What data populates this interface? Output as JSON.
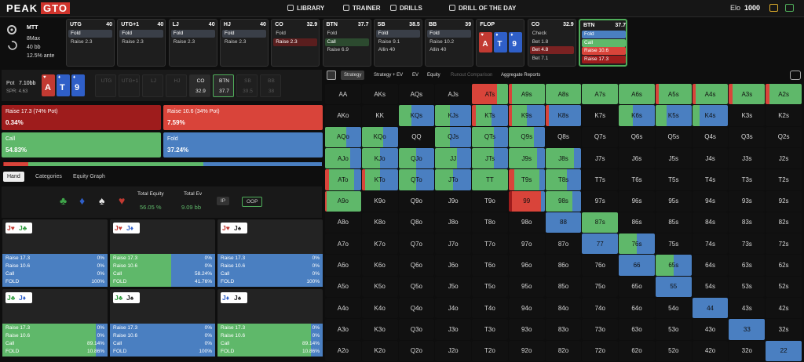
{
  "header": {
    "logo": [
      "PEAK",
      "GTO"
    ],
    "nav": [
      "LIBRARY",
      "TRAINER",
      "DRILLS",
      "DRILL OF THE DAY"
    ],
    "elo_label": "Elo",
    "elo": 1000
  },
  "game": {
    "format": "MTT",
    "table": "8Max",
    "stack": "40 bb",
    "ante": "12.5% ante"
  },
  "action_history": [
    {
      "position": "UTG",
      "stack": 40,
      "actions": [
        {
          "text": "Fold",
          "color": "#3a3f48"
        },
        {
          "text": "Raise 2.3"
        }
      ]
    },
    {
      "position": "UTG+1",
      "stack": 40,
      "actions": [
        {
          "text": "Fold",
          "color": "#3a3f48"
        },
        {
          "text": "Raise 2.3"
        }
      ]
    },
    {
      "position": "LJ",
      "stack": 40,
      "actions": [
        {
          "text": "Fold",
          "color": "#3a3f48"
        },
        {
          "text": "Raise 2.3"
        }
      ]
    },
    {
      "position": "HJ",
      "stack": 40,
      "actions": [
        {
          "text": "Fold",
          "color": "#3a3f48"
        },
        {
          "text": "Raise 2.3"
        }
      ]
    },
    {
      "position": "CO",
      "stack": 32.9,
      "actions": [
        {
          "text": "Fold"
        },
        {
          "text": "Raise 2.3",
          "color": "#5a1e1e"
        }
      ]
    },
    {
      "position": "BTN",
      "stack": 37.7,
      "actions": [
        {
          "text": "Fold"
        },
        {
          "text": "Call",
          "color": "#2c4a2f"
        },
        {
          "text": "Raise 6.9"
        }
      ]
    },
    {
      "position": "SB",
      "stack": 38.5,
      "actions": [
        {
          "text": "Fold",
          "color": "#3a3f48"
        },
        {
          "text": "Raise 9.1"
        },
        {
          "text": "Allin 40"
        }
      ]
    },
    {
      "position": "BB",
      "stack": 39,
      "actions": [
        {
          "text": "Fold",
          "color": "#3a3f48"
        },
        {
          "text": "Raise 10.2"
        },
        {
          "text": "Allin 40"
        }
      ]
    },
    {
      "position": "FLOP",
      "cards": [
        {
          "rank": "A",
          "suit": "♥",
          "color": "#c23a32"
        },
        {
          "rank": "T",
          "suit": "♦",
          "color": "#2f5fc8"
        },
        {
          "rank": "9",
          "suit": "♦",
          "color": "#2f5fc8"
        }
      ]
    },
    {
      "position": "CO",
      "stack": 32.9,
      "actions": [
        {
          "text": "Check"
        },
        {
          "text": "Bet 1.8"
        },
        {
          "text": "Bet 4.8",
          "color": "#7a2222"
        },
        {
          "text": "Bet 7.1"
        }
      ]
    },
    {
      "position": "BTN",
      "stack": 37.7,
      "current": true,
      "actions": [
        {
          "text": "Fold",
          "color": "#4a7fc1"
        },
        {
          "text": "Call",
          "color": "#5fb86a"
        },
        {
          "text": "Raise 10.6",
          "color": "#d9443a"
        },
        {
          "text": "Raise 17.3",
          "color": "#9e1c1c"
        }
      ]
    }
  ],
  "pot": {
    "label": "Pot",
    "value": "7.10bb",
    "spr": "SPR: 4.63",
    "board": [
      {
        "rank": "A",
        "suit": "♥",
        "color": "#c23a32"
      },
      {
        "rank": "T",
        "suit": "♦",
        "color": "#2f5fc8"
      },
      {
        "rank": "9",
        "suit": "♦",
        "color": "#2f5fc8"
      }
    ],
    "seats": [
      {
        "position": "UTG"
      },
      {
        "position": "UTG+1"
      },
      {
        "position": "LJ"
      },
      {
        "position": "HJ"
      },
      {
        "position": "CO",
        "stack": 32.9,
        "active": true
      },
      {
        "position": "BTN",
        "stack": 37.7,
        "active": true,
        "current": true
      },
      {
        "position": "SB",
        "stack": 39.5
      },
      {
        "position": "BB",
        "stack": 38
      }
    ]
  },
  "actions": [
    {
      "name": "Raise 17.3 (74% Pot)",
      "frequency": 0.34,
      "frequency_label": "0.34%",
      "color": "#9e1c1c"
    },
    {
      "name": "Raise 10.6 (34% Pot)",
      "frequency": 7.59,
      "frequency_label": "7.59%",
      "color": "#d9443a"
    },
    {
      "name": "Call",
      "frequency": 54.83,
      "frequency_label": "54.83%",
      "color": "#5fb86a"
    },
    {
      "name": "Fold",
      "frequency": 37.24,
      "frequency_label": "37.24%",
      "color": "#4a7fc1"
    }
  ],
  "tabs": [
    "Hand",
    "Categories",
    "Equity Graph"
  ],
  "equity": {
    "suit_filters": [
      {
        "text": "♣",
        "color": "#3fa64a"
      },
      {
        "text": "♦",
        "color": "#2f5fc8"
      },
      {
        "text": "♠",
        "color": "#e8e8e8"
      },
      {
        "text": "♥",
        "color": "#c23a32"
      }
    ],
    "total_equity_label": "Total Equity",
    "total_equity": "56.05 %",
    "total_ev_label": "Total Ev",
    "total_ev": "9.09 bb",
    "ip": "IP",
    "oop": "OOP"
  },
  "hands": [
    {
      "cards": [
        {
          "text": "J♥",
          "color": "#c23a32"
        },
        {
          "text": "J♣",
          "color": "#2e9a3c"
        }
      ],
      "rows": [
        {
          "action": "Raise 17.3",
          "value": 0,
          "label": "0%"
        },
        {
          "action": "Raise 10.6",
          "value": 0,
          "label": "0%"
        },
        {
          "action": "Call",
          "value": 0,
          "label": "0%"
        },
        {
          "action": "FOLD",
          "value": 100,
          "label": "100%"
        }
      ]
    },
    {
      "cards": [
        {
          "text": "J♥",
          "color": "#c23a32"
        },
        {
          "text": "J♦",
          "color": "#2f5fc8"
        }
      ],
      "rows": [
        {
          "action": "Raise 17.3",
          "value": 0,
          "label": "0%"
        },
        {
          "action": "Raise 10.6",
          "value": 0,
          "label": "0%"
        },
        {
          "action": "Call",
          "value": 58.24,
          "label": "58.24%"
        },
        {
          "action": "FOLD",
          "value": 41.76,
          "label": "41.76%"
        }
      ]
    },
    {
      "cards": [
        {
          "text": "J♥",
          "color": "#c23a32"
        },
        {
          "text": "J♠",
          "color": "#222"
        }
      ],
      "rows": [
        {
          "action": "Raise 17.3",
          "value": 0,
          "label": "0%"
        },
        {
          "action": "Raise 10.6",
          "value": 0,
          "label": "0%"
        },
        {
          "action": "Call",
          "value": 0,
          "label": "0%"
        },
        {
          "action": "FOLD",
          "value": 100,
          "label": "100%"
        }
      ]
    },
    {
      "cards": [
        {
          "text": "J♣",
          "color": "#2e9a3c"
        },
        {
          "text": "J♦",
          "color": "#2f5fc8"
        }
      ],
      "rows": [
        {
          "action": "Raise 17.3",
          "value": 0,
          "label": "0%"
        },
        {
          "action": "Raise 10.6",
          "value": 0,
          "label": "0%"
        },
        {
          "action": "Call",
          "value": 89.14,
          "label": "89.14%"
        },
        {
          "action": "FOLD",
          "value": 10.86,
          "label": "10.86%"
        }
      ]
    },
    {
      "cards": [
        {
          "text": "J♣",
          "color": "#2e9a3c"
        },
        {
          "text": "J♠",
          "color": "#222"
        }
      ],
      "rows": [
        {
          "action": "Raise 17.3",
          "value": 0,
          "label": "0%"
        },
        {
          "action": "Raise 10.6",
          "value": 0,
          "label": "0%"
        },
        {
          "action": "Call",
          "value": 0,
          "label": "0%"
        },
        {
          "action": "FOLD",
          "value": 100,
          "label": "100%"
        }
      ]
    },
    {
      "cards": [
        {
          "text": "J♦",
          "color": "#2f5fc8"
        },
        {
          "text": "J♠",
          "color": "#222"
        }
      ],
      "rows": [
        {
          "action": "Raise 17.3",
          "value": 0,
          "label": "0%"
        },
        {
          "action": "Raise 10.6",
          "value": 0,
          "label": "0%"
        },
        {
          "action": "Call",
          "value": 89.14,
          "label": "89.14%"
        },
        {
          "action": "FOLD",
          "value": 10.86,
          "label": "10.86%"
        }
      ]
    }
  ],
  "grid": {
    "tabs": [
      "Strategy",
      "Strategy + EV",
      "EV",
      "Equity",
      "Runout Comparison",
      "Aggregate Reports"
    ],
    "rows": [
      [
        "AA",
        "AKs",
        "AQs",
        "AJs",
        "ATs",
        "A9s",
        "A8s",
        "A7s",
        "A6s",
        "A5s",
        "A4s",
        "A3s",
        "A2s"
      ],
      [
        "AKo",
        "KK",
        "KQs",
        "KJs",
        "KTs",
        "K9s",
        "K8s",
        "K7s",
        "K6s",
        "K5s",
        "K4s",
        "K3s",
        "K2s"
      ],
      [
        "AQo",
        "KQo",
        "QQ",
        "QJs",
        "QTs",
        "Q9s",
        "Q8s",
        "Q7s",
        "Q6s",
        "Q5s",
        "Q4s",
        "Q3s",
        "Q2s"
      ],
      [
        "AJo",
        "KJo",
        "QJo",
        "JJ",
        "JTs",
        "J9s",
        "J8s",
        "J7s",
        "J6s",
        "J5s",
        "J4s",
        "J3s",
        "J2s"
      ],
      [
        "ATo",
        "KTo",
        "QTo",
        "JTo",
        "TT",
        "T9s",
        "T8s",
        "T7s",
        "T6s",
        "T5s",
        "T4s",
        "T3s",
        "T2s"
      ],
      [
        "A9o",
        "K9o",
        "Q9o",
        "J9o",
        "T9o",
        "99",
        "98s",
        "97s",
        "96s",
        "95s",
        "94s",
        "93s",
        "92s"
      ],
      [
        "A8o",
        "K8o",
        "Q8o",
        "J8o",
        "T8o",
        "98o",
        "88",
        "87s",
        "86s",
        "85s",
        "84s",
        "83s",
        "82s"
      ],
      [
        "A7o",
        "K7o",
        "Q7o",
        "J7o",
        "T7o",
        "97o",
        "87o",
        "77",
        "76s",
        "75s",
        "74s",
        "73s",
        "72s"
      ],
      [
        "A6o",
        "K6o",
        "Q6o",
        "J6o",
        "T6o",
        "96o",
        "86o",
        "76o",
        "66",
        "65s",
        "64s",
        "63s",
        "62s"
      ],
      [
        "A5o",
        "K5o",
        "Q5o",
        "J5o",
        "T5o",
        "95o",
        "85o",
        "75o",
        "65o",
        "55",
        "54s",
        "53s",
        "52s"
      ],
      [
        "A4o",
        "K4o",
        "Q4o",
        "J4o",
        "T4o",
        "94o",
        "84o",
        "74o",
        "64o",
        "54o",
        "44",
        "43s",
        "42s"
      ],
      [
        "A3o",
        "K3o",
        "Q3o",
        "J3o",
        "T3o",
        "93o",
        "83o",
        "73o",
        "63o",
        "53o",
        "43o",
        "33",
        "32s"
      ],
      [
        "A2o",
        "K2o",
        "Q2o",
        "J2o",
        "T2o",
        "92o",
        "82o",
        "72o",
        "62o",
        "52o",
        "42o",
        "32o",
        "22"
      ]
    ],
    "frequencies": {
      "ATs": [
        0,
        70,
        30,
        0
      ],
      "A9s": [
        0,
        10,
        90,
        0
      ],
      "A8s": [
        0,
        0,
        100,
        0
      ],
      "A7s": [
        0,
        0,
        100,
        0
      ],
      "A6s": [
        0,
        0,
        100,
        0
      ],
      "A5s": [
        0,
        10,
        90,
        0
      ],
      "A4s": [
        0,
        10,
        90,
        0
      ],
      "A3s": [
        0,
        10,
        90,
        0
      ],
      "A2s": [
        0,
        10,
        90,
        0
      ],
      "KQs": [
        0,
        0,
        35,
        65
      ],
      "KJs": [
        0,
        0,
        40,
        60
      ],
      "KTs": [
        0,
        10,
        45,
        45
      ],
      "K9s": [
        0,
        10,
        40,
        50
      ],
      "K8s": [
        0,
        10,
        0,
        90
      ],
      "K6s": [
        0,
        0,
        40,
        60
      ],
      "K5s": [
        0,
        0,
        30,
        70
      ],
      "K4s": [
        0,
        0,
        20,
        80
      ],
      "AQo": [
        0,
        0,
        60,
        40
      ],
      "KQo": [
        0,
        0,
        60,
        40
      ],
      "QJs": [
        0,
        0,
        40,
        60
      ],
      "QTs": [
        0,
        0,
        60,
        40
      ],
      "Q9s": [
        0,
        0,
        70,
        30
      ],
      "AJo": [
        0,
        0,
        70,
        30
      ],
      "KJo": [
        0,
        0,
        50,
        50
      ],
      "QJo": [
        0,
        0,
        50,
        50
      ],
      "JJ": [
        0,
        0,
        60,
        40
      ],
      "JTs": [
        0,
        0,
        60,
        40
      ],
      "J9s": [
        0,
        0,
        80,
        20
      ],
      "J8s": [
        0,
        0,
        80,
        20
      ],
      "ATo": [
        0,
        10,
        70,
        20
      ],
      "KTo": [
        0,
        10,
        40,
        50
      ],
      "QTo": [
        0,
        0,
        50,
        50
      ],
      "JTo": [
        0,
        0,
        50,
        50
      ],
      "TT": [
        0,
        0,
        100,
        0
      ],
      "T9s": [
        0,
        15,
        70,
        15
      ],
      "T8s": [
        0,
        0,
        60,
        40
      ],
      "A9o": [
        0,
        5,
        95,
        0
      ],
      "99": [
        10,
        80,
        0,
        10
      ],
      "98s": [
        0,
        0,
        75,
        25
      ],
      "88": [
        0,
        0,
        0,
        100
      ],
      "87s": [
        0,
        0,
        100,
        0
      ],
      "77": [
        0,
        0,
        0,
        100
      ],
      "76s": [
        0,
        0,
        50,
        50
      ],
      "66": [
        0,
        0,
        0,
        100
      ],
      "65s": [
        0,
        0,
        50,
        50
      ],
      "55": [
        0,
        0,
        0,
        100
      ],
      "44": [
        0,
        0,
        0,
        100
      ],
      "33": [
        0,
        0,
        0,
        100
      ],
      "22": [
        0,
        0,
        0,
        100
      ]
    }
  }
}
